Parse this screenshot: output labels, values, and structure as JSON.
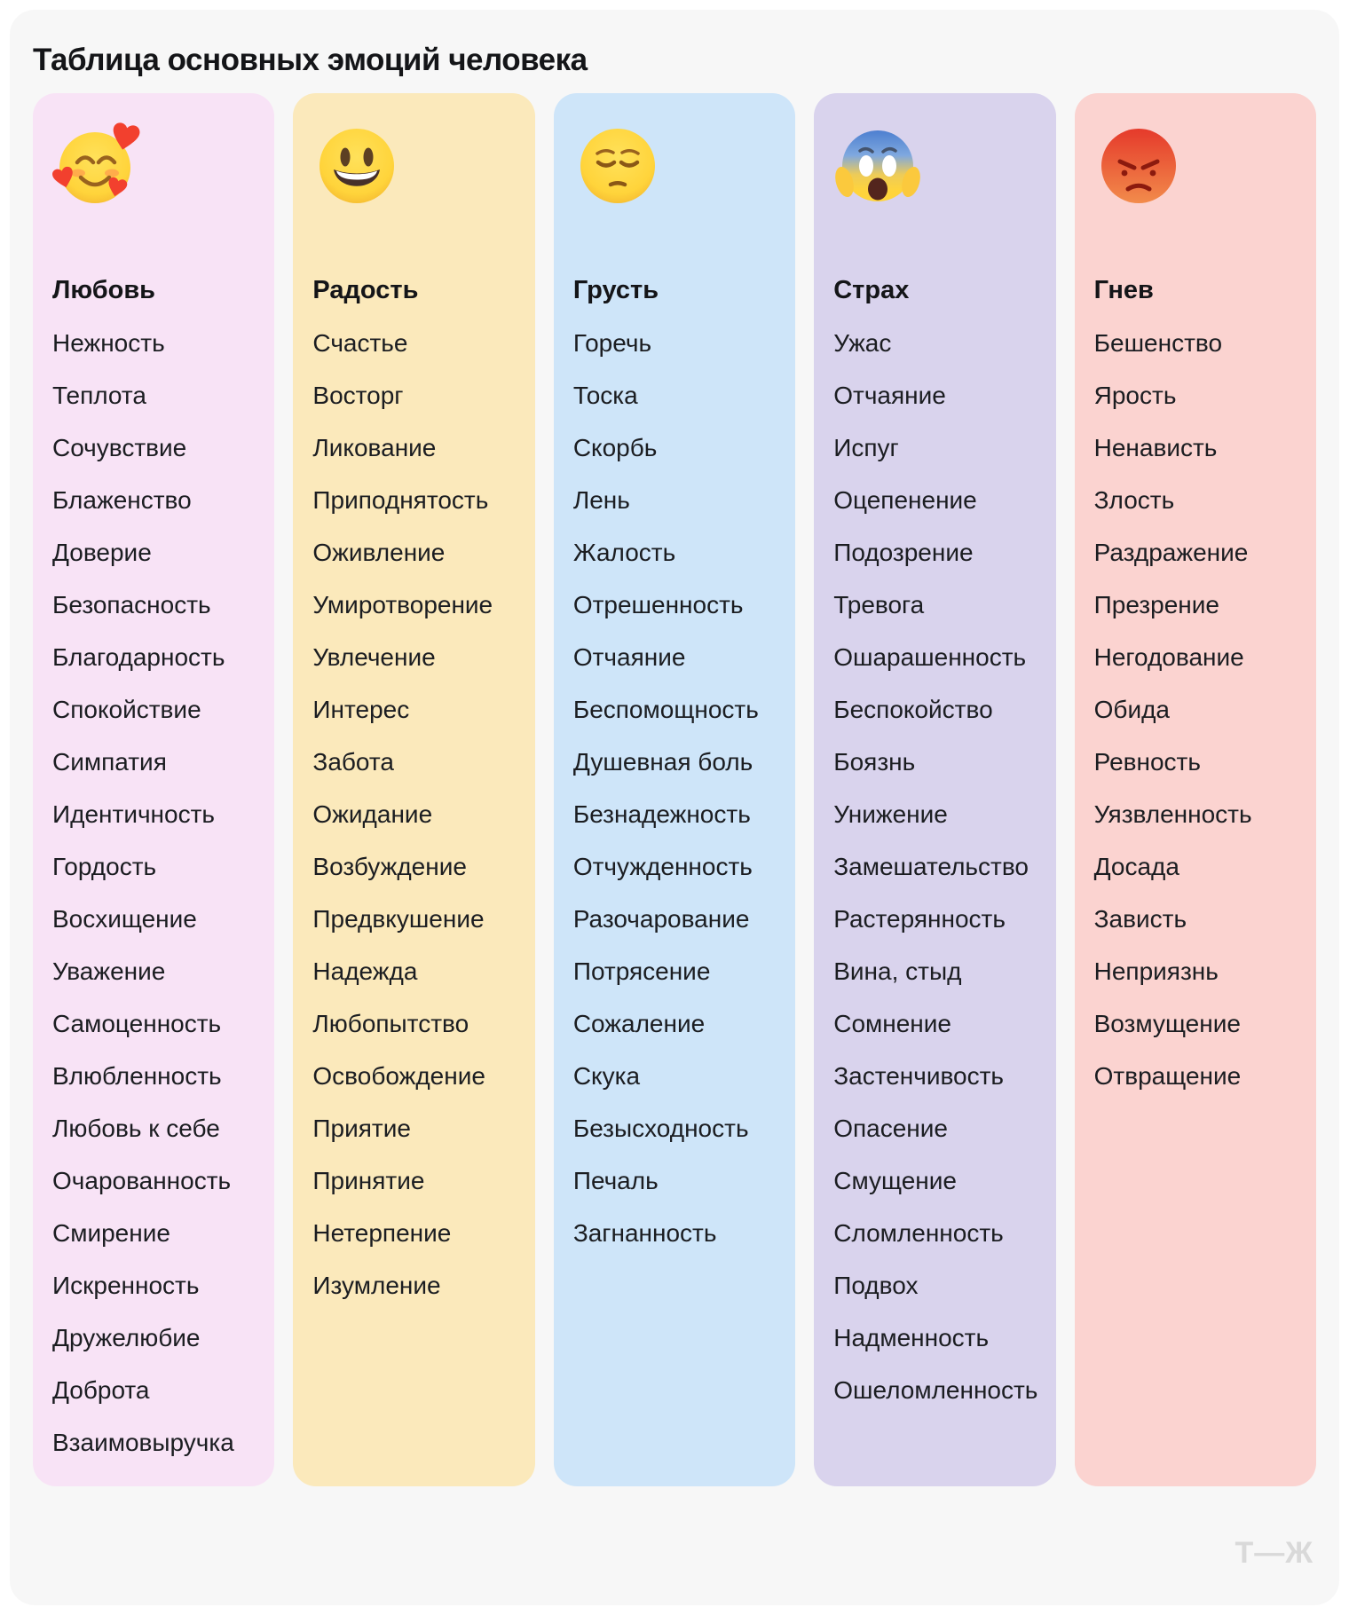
{
  "page": {
    "title": "Таблица основных эмоций человека",
    "logo": "Т—Ж",
    "card_background": "#f7f7f7"
  },
  "columns": [
    {
      "name": "Любовь",
      "icon": "smiling-face-with-hearts",
      "color": "#f8e3f6",
      "emotions": [
        "Нежность",
        "Теплота",
        "Сочувствие",
        "Блаженство",
        "Доверие",
        "Безопасность",
        "Благодарность",
        "Спокойствие",
        "Симпатия",
        "Идентичность",
        "Гордость",
        "Восхищение",
        "Уважение",
        "Самоценность",
        "Влюбленность",
        "Любовь к себе",
        "Очарованность",
        "Смирение",
        "Искренность",
        "Дружелюбие",
        "Доброта",
        "Взаимовыручка"
      ]
    },
    {
      "name": "Радость",
      "icon": "grinning-face",
      "color": "#fbe9bb",
      "emotions": [
        "Счастье",
        "Восторг",
        "Ликование",
        "Приподнятость",
        "Оживление",
        "Умиротворение",
        "Увлечение",
        "Интерес",
        "Забота",
        "Ожидание",
        "Возбуждение",
        "Предвкушение",
        "Надежда",
        "Любопытство",
        "Освобождение",
        "Приятие",
        "Принятие",
        "Нетерпение",
        "Изумление"
      ]
    },
    {
      "name": "Грусть",
      "icon": "pensive-face",
      "color": "#cee5f9",
      "emotions": [
        "Горечь",
        "Тоска",
        "Скорбь",
        "Лень",
        "Жалость",
        "Отрешенность",
        "Отчаяние",
        "Беспомощность",
        "Душевная боль",
        "Безнадежность",
        "Отчужденность",
        "Разочарование",
        "Потрясение",
        "Сожаление",
        "Скука",
        "Безысходность",
        "Печаль",
        "Загнанность"
      ]
    },
    {
      "name": "Страх",
      "icon": "screaming-face",
      "color": "#d9d3ed",
      "emotions": [
        "Ужас",
        "Отчаяние",
        "Испуг",
        "Оцепенение",
        "Подозрение",
        "Тревога",
        "Ошарашенность",
        "Беспокойство",
        "Боязнь",
        "Унижение",
        "Замешательство",
        "Растерянность",
        "Вина, стыд",
        "Сомнение",
        "Застенчивость",
        "Опасение",
        "Смущение",
        "Сломленность",
        "Подвох",
        "Надменность",
        "Ошеломленность"
      ]
    },
    {
      "name": "Гнев",
      "icon": "angry-face",
      "color": "#fbd3d0",
      "emotions": [
        "Бешенство",
        "Ярость",
        "Ненависть",
        "Злость",
        "Раздражение",
        "Презрение",
        "Негодование",
        "Обида",
        "Ревность",
        "Уязвленность",
        "Досада",
        "Зависть",
        "Неприязнь",
        "Возмущение",
        "Отвращение"
      ]
    }
  ]
}
